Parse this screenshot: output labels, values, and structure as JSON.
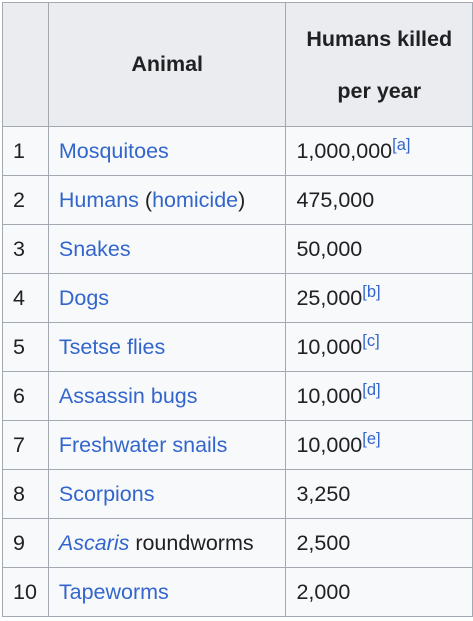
{
  "table": {
    "headers": {
      "rank": "",
      "animal": "Animal",
      "killed_line1": "Humans killed",
      "killed_line2": "per year"
    },
    "rows": [
      {
        "rank": "1",
        "animal": "Mosquitoes",
        "killed": "1,000,000",
        "note": "[a]"
      },
      {
        "rank": "2",
        "animal": "Humans",
        "animal_paren_open": "(",
        "animal_link2": "homicide",
        "animal_paren_close": ")",
        "killed": "475,000"
      },
      {
        "rank": "3",
        "animal": "Snakes",
        "killed": "50,000"
      },
      {
        "rank": "4",
        "animal": "Dogs",
        "killed": "25,000",
        "note": "[b]"
      },
      {
        "rank": "5",
        "animal": "Tsetse flies",
        "killed": "10,000",
        "note": "[c]"
      },
      {
        "rank": "6",
        "animal": "Assassin bugs",
        "killed": "10,000",
        "note": "[d]"
      },
      {
        "rank": "7",
        "animal": "Freshwater snails",
        "killed": "10,000",
        "note": "[e]"
      },
      {
        "rank": "8",
        "animal": "Scorpions",
        "killed": "3,250"
      },
      {
        "rank": "9",
        "animal": "Ascaris",
        "animal_suffix": " roundworms",
        "killed": "2,500"
      },
      {
        "rank": "10",
        "animal": "Tapeworms",
        "killed": "2,000"
      }
    ]
  },
  "colors": {
    "link": "#3366cc",
    "text": "#202122",
    "header_bg": "#eaecf0",
    "cell_bg": "#f8f9fa",
    "border": "#a2a9b1"
  }
}
